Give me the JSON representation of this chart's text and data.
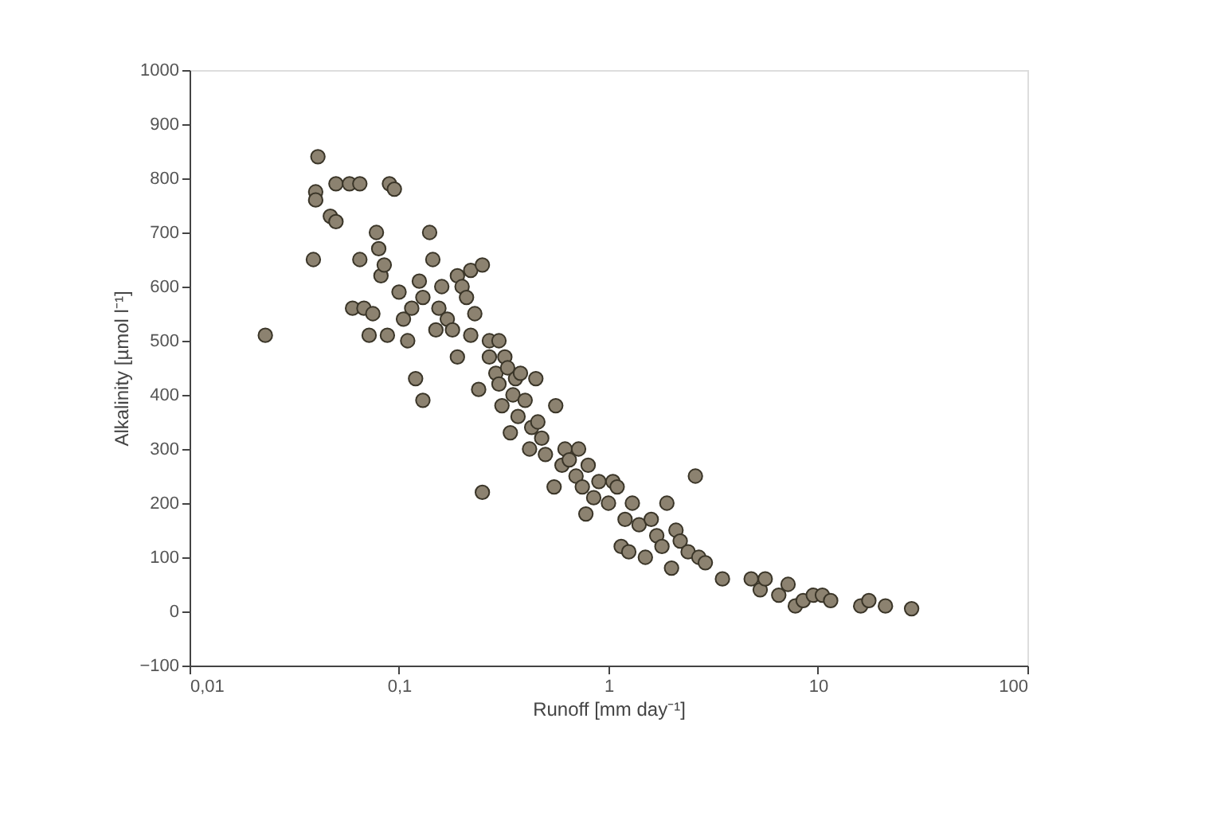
{
  "chart_data": {
    "type": "scatter",
    "xlabel": "Runoff [mm day⁻¹]",
    "ylabel": "Alkalinity [µmol l⁻¹]",
    "log": "x",
    "grid": false,
    "marker": "circle",
    "xlim": [
      0.01,
      100
    ],
    "xticks": [
      {
        "value": 0.01,
        "label": "0,01"
      },
      {
        "value": 0.1,
        "label": "0,1"
      },
      1,
      10,
      100
    ],
    "ylim": [
      -100,
      1000
    ],
    "yticks": [
      -100,
      0,
      100,
      200,
      300,
      400,
      500,
      600,
      700,
      800,
      900,
      1000
    ],
    "series": [
      {
        "color": "#8c8270",
        "x": [
          0.023,
          0.041,
          0.04,
          0.04,
          0.039,
          0.047,
          0.05,
          0.05,
          0.058,
          0.065,
          0.06,
          0.065,
          0.068,
          0.072,
          0.075,
          0.078,
          0.08,
          0.082,
          0.085,
          0.09,
          0.095,
          0.088,
          0.1,
          0.105,
          0.11,
          0.115,
          0.12,
          0.125,
          0.13,
          0.13,
          0.14,
          0.145,
          0.15,
          0.155,
          0.16,
          0.17,
          0.18,
          0.19,
          0.19,
          0.2,
          0.21,
          0.22,
          0.22,
          0.23,
          0.24,
          0.25,
          0.25,
          0.27,
          0.27,
          0.29,
          0.3,
          0.3,
          0.31,
          0.32,
          0.33,
          0.34,
          0.35,
          0.36,
          0.37,
          0.38,
          0.4,
          0.42,
          0.43,
          0.45,
          0.46,
          0.48,
          0.5,
          0.55,
          0.56,
          0.6,
          0.62,
          0.65,
          0.7,
          0.72,
          0.75,
          0.78,
          0.8,
          0.85,
          0.9,
          1.0,
          1.05,
          1.1,
          1.15,
          1.2,
          1.25,
          1.3,
          1.4,
          1.5,
          1.6,
          1.7,
          1.8,
          1.9,
          2.0,
          2.1,
          2.2,
          2.4,
          2.6,
          2.7,
          2.9,
          3.5,
          4.8,
          5.3,
          5.6,
          6.5,
          7.2,
          7.8,
          8.5,
          9.5,
          10.5,
          11.5,
          16,
          17.5,
          21,
          28
        ],
        "values": [
          510,
          840,
          775,
          760,
          650,
          730,
          720,
          790,
          790,
          790,
          560,
          650,
          560,
          510,
          550,
          700,
          670,
          620,
          640,
          790,
          780,
          510,
          590,
          540,
          500,
          560,
          430,
          610,
          390,
          580,
          700,
          650,
          520,
          560,
          600,
          540,
          520,
          470,
          620,
          600,
          580,
          630,
          510,
          550,
          410,
          220,
          640,
          500,
          470,
          440,
          420,
          500,
          380,
          470,
          450,
          330,
          400,
          430,
          360,
          440,
          390,
          300,
          340,
          430,
          350,
          320,
          290,
          230,
          380,
          270,
          300,
          280,
          250,
          300,
          230,
          180,
          270,
          210,
          240,
          200,
          240,
          230,
          120,
          170,
          110,
          200,
          160,
          100,
          170,
          140,
          120,
          200,
          80,
          150,
          130,
          110,
          250,
          100,
          90,
          60,
          60,
          40,
          60,
          30,
          50,
          10,
          20,
          30,
          30,
          20,
          10,
          20,
          10,
          5
        ]
      }
    ]
  }
}
